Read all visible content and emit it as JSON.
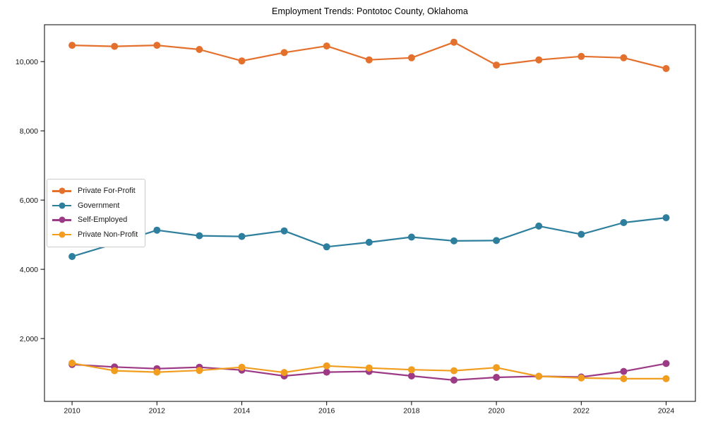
{
  "title": "Employment Trends: Pontotoc County, Oklahoma",
  "chart_data": {
    "type": "line",
    "title": "Employment Trends: Pontotoc County, Oklahoma",
    "xlabel": "",
    "ylabel": "",
    "x": [
      2010,
      2011,
      2012,
      2013,
      2014,
      2015,
      2016,
      2017,
      2018,
      2019,
      2020,
      2021,
      2022,
      2023,
      2024
    ],
    "series": [
      {
        "name": "Private For-Profit",
        "color": "#e4702d",
        "values": [
          10470,
          10440,
          10470,
          10350,
          10020,
          10260,
          10450,
          10050,
          10110,
          10560,
          9900,
          10050,
          10150,
          10110,
          9800
        ]
      },
      {
        "name": "Government",
        "color": "#2e7f9d",
        "values": [
          4370,
          4740,
          5130,
          4970,
          4950,
          5110,
          4650,
          4780,
          4930,
          4820,
          4830,
          5250,
          5010,
          5350,
          5490
        ]
      },
      {
        "name": "Self-Employed",
        "color": "#9d3a86",
        "values": [
          1250,
          1180,
          1130,
          1170,
          1090,
          920,
          1030,
          1050,
          920,
          800,
          880,
          910,
          890,
          1050,
          1280
        ]
      },
      {
        "name": "Private Non-Profit",
        "color": "#f19d1f",
        "values": [
          1290,
          1070,
          1030,
          1080,
          1170,
          1020,
          1210,
          1150,
          1100,
          1070,
          1160,
          910,
          860,
          840,
          840
        ]
      }
    ],
    "xticks": [
      2010,
      2012,
      2014,
      2016,
      2018,
      2020,
      2022,
      2024
    ],
    "yticks": [
      {
        "value": 2000,
        "label": "2,000"
      },
      {
        "value": 4000,
        "label": "4,000"
      },
      {
        "value": 6000,
        "label": "6,000"
      },
      {
        "value": 8000,
        "label": "8,000"
      },
      {
        "value": 10000,
        "label": "10,000"
      }
    ],
    "xlim": [
      2009.35,
      2024.69
    ],
    "ylim": [
      185,
      11065
    ],
    "grid": false,
    "legend_position": "center-left",
    "marker": "circle"
  }
}
